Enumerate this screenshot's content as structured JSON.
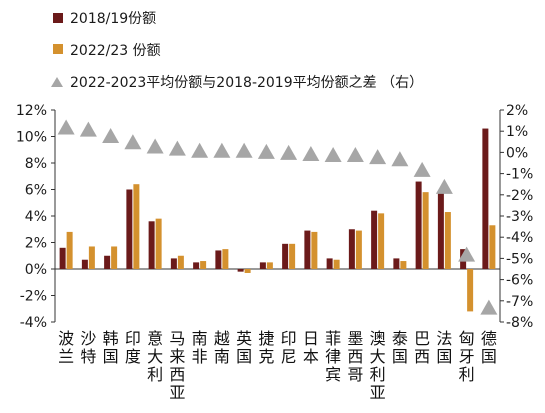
{
  "chart_data": {
    "type": "bar",
    "title": "",
    "xlabel": "",
    "ylabel": "",
    "categories": [
      "波兰",
      "沙特",
      "韩国",
      "印度",
      "意大利",
      "马来西亚",
      "南非",
      "越南",
      "英国",
      "捷克",
      "印尼",
      "日本",
      "菲律宾",
      "墨西哥",
      "澳大利亚",
      "泰国",
      "巴西",
      "法国",
      "匈牙利",
      "德国"
    ],
    "series": [
      {
        "name": "2018/19份额",
        "axis": "left",
        "kind": "bar",
        "color": "#6b1a1a",
        "values": [
          1.6,
          0.7,
          1.0,
          6.0,
          3.6,
          0.8,
          0.5,
          1.4,
          -0.2,
          0.5,
          1.9,
          2.9,
          0.8,
          3.0,
          4.4,
          0.8,
          6.6,
          5.9,
          1.5,
          10.6
        ]
      },
      {
        "name": "2022/23 份额",
        "axis": "left",
        "kind": "bar",
        "color": "#d4912e",
        "values": [
          2.8,
          1.7,
          1.7,
          6.4,
          3.8,
          1.0,
          0.6,
          1.5,
          -0.3,
          0.5,
          1.9,
          2.8,
          0.7,
          2.9,
          4.2,
          0.6,
          5.8,
          4.3,
          -3.2,
          3.3
        ]
      },
      {
        "name": "2022-2023平均份额与2018-2019平均份额之差  （右）",
        "axis": "right",
        "kind": "marker",
        "color": "#a6a6a6",
        "values": [
          1.2,
          1.1,
          0.8,
          0.5,
          0.3,
          0.2,
          0.1,
          0.1,
          0.1,
          0.05,
          0.0,
          -0.05,
          -0.1,
          -0.1,
          -0.2,
          -0.3,
          -0.8,
          -1.6,
          -4.8,
          -7.3
        ]
      }
    ],
    "ylim": [
      -4,
      12
    ],
    "yticks": [
      -4,
      -2,
      0,
      2,
      4,
      6,
      8,
      10,
      12
    ],
    "ytick_labels": [
      "-4%",
      "-2%",
      "0%",
      "2%",
      "4%",
      "6%",
      "8%",
      "10%",
      "12%"
    ],
    "y2lim": [
      -8,
      2
    ],
    "y2ticks": [
      -8,
      -7,
      -6,
      -5,
      -4,
      -3,
      -2,
      -1,
      0,
      1,
      2
    ],
    "y2tick_labels": [
      "-8%",
      "-7%",
      "-6%",
      "-5%",
      "-4%",
      "-3%",
      "-2%",
      "-1%",
      "0%",
      "1%",
      "2%"
    ],
    "grid": false,
    "legend_position": "top-left"
  }
}
